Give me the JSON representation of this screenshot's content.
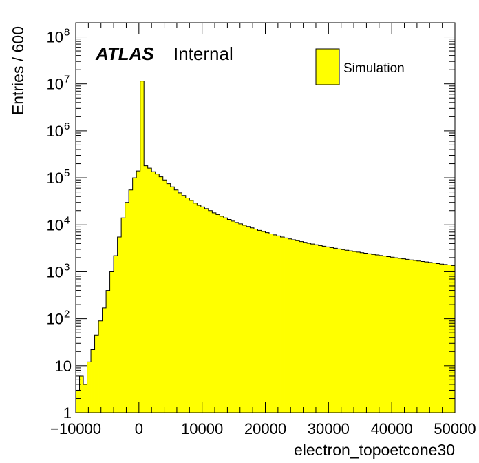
{
  "chart_data": {
    "type": "bar",
    "subtype": "histogram",
    "xlabel": "electron_topoetcone30",
    "ylabel": "Entries / 600",
    "xlim": [
      -10000,
      50000
    ],
    "ylim": [
      1,
      200000000
    ],
    "yscale": "log",
    "bin_width": 600,
    "x_ticks": [
      "−10000",
      "0",
      "10000",
      "20000",
      "30000",
      "40000",
      "50000"
    ],
    "y_tick_values": [
      1,
      10,
      100,
      1000,
      10000,
      100000,
      1000000,
      10000000,
      100000000
    ],
    "y_tick_labels": [
      {
        "base": "1",
        "exp": ""
      },
      {
        "base": "10",
        "exp": ""
      },
      {
        "base": "10",
        "exp": "2"
      },
      {
        "base": "10",
        "exp": "3"
      },
      {
        "base": "10",
        "exp": "4"
      },
      {
        "base": "10",
        "exp": "5"
      },
      {
        "base": "10",
        "exp": "6"
      },
      {
        "base": "10",
        "exp": "7"
      },
      {
        "base": "10",
        "exp": "8"
      }
    ],
    "atlas_label": "ATLAS",
    "atlas_sublabel": "Internal",
    "series": [
      {
        "name": "Simulation",
        "color": "#ffff00",
        "x_start": -10000,
        "values": [
          3,
          6,
          4,
          12,
          22,
          45,
          90,
          170,
          400,
          1000,
          2200,
          5500,
          14000,
          30000,
          55000,
          100000,
          140000,
          11500000,
          180000,
          160000,
          135000,
          120000,
          105000,
          90000,
          75000,
          64000,
          55000,
          48000,
          42000,
          37000,
          33000,
          29000,
          26000,
          24000,
          22000,
          20000,
          18000,
          16500,
          15200,
          14000,
          13000,
          12000,
          11200,
          10500,
          9800,
          9200,
          8600,
          8100,
          7600,
          7200,
          6800,
          6400,
          6100,
          5800,
          5500,
          5250,
          5000,
          4800,
          4600,
          4400,
          4220,
          4050,
          3900,
          3750,
          3620,
          3500,
          3380,
          3270,
          3160,
          3060,
          2960,
          2870,
          2790,
          2700,
          2620,
          2550,
          2480,
          2410,
          2340,
          2280,
          2220,
          2160,
          2100,
          2050,
          1990,
          1940,
          1890,
          1840,
          1790,
          1750,
          1700,
          1660,
          1620,
          1580,
          1540,
          1500,
          1460,
          1430,
          1400,
          1360
        ]
      }
    ]
  }
}
